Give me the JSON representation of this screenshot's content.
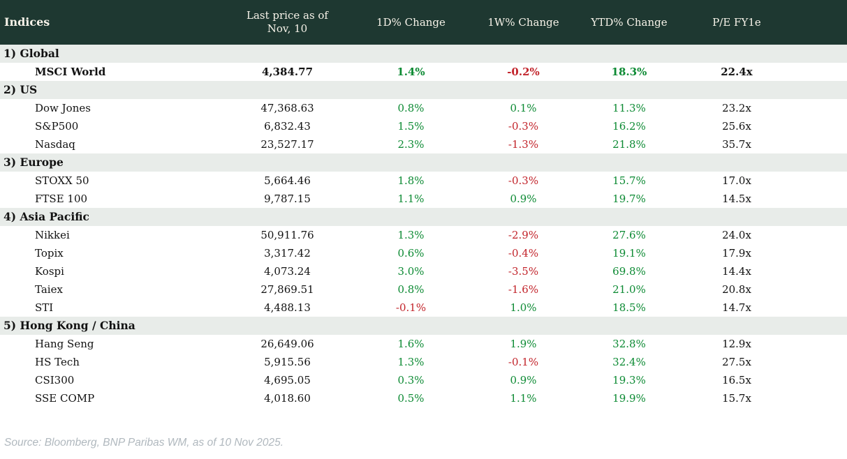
{
  "colors": {
    "header_bg": "#1e3831",
    "header_text": "#f7f3e9",
    "section_bg": "#e8ece9",
    "positive_green": "#0c8a33",
    "negative_red": "#c2242b",
    "body_text": "#121212",
    "footer_text": "#b0b8be",
    "page_bg": "#ffffff"
  },
  "chart_data": {
    "type": "table",
    "title": "Indices",
    "columns": [
      "Indices",
      "Last price as of Nov, 10",
      "1D% Change",
      "1W% Change",
      "YTD% Change",
      "P/E FY1e"
    ],
    "sections": [
      {
        "label": "1) Global",
        "rows": [
          {
            "name": "MSCI World",
            "bold": true,
            "last_price": "4,384.77",
            "chg_1d_pct": 1.4,
            "chg_1w_pct": -0.2,
            "chg_ytd_pct": 18.3,
            "pe_fy1e": 22.4
          }
        ]
      },
      {
        "label": "2) US",
        "rows": [
          {
            "name": "Dow Jones",
            "last_price": "47,368.63",
            "chg_1d_pct": 0.8,
            "chg_1w_pct": 0.1,
            "chg_ytd_pct": 11.3,
            "pe_fy1e": 23.2
          },
          {
            "name": "S&P500",
            "last_price": "6,832.43",
            "chg_1d_pct": 1.5,
            "chg_1w_pct": -0.3,
            "chg_ytd_pct": 16.2,
            "pe_fy1e": 25.6
          },
          {
            "name": "Nasdaq",
            "last_price": "23,527.17",
            "chg_1d_pct": 2.3,
            "chg_1w_pct": -1.3,
            "chg_ytd_pct": 21.8,
            "pe_fy1e": 35.7
          }
        ]
      },
      {
        "label": "3) Europe",
        "rows": [
          {
            "name": "STOXX 50",
            "last_price": "5,664.46",
            "chg_1d_pct": 1.8,
            "chg_1w_pct": -0.3,
            "chg_ytd_pct": 15.7,
            "pe_fy1e": 17.0
          },
          {
            "name": "FTSE 100",
            "last_price": "9,787.15",
            "chg_1d_pct": 1.1,
            "chg_1w_pct": 0.9,
            "chg_ytd_pct": 19.7,
            "pe_fy1e": 14.5
          }
        ]
      },
      {
        "label": "4) Asia Pacific",
        "rows": [
          {
            "name": "Nikkei",
            "last_price": "50,911.76",
            "chg_1d_pct": 1.3,
            "chg_1w_pct": -2.9,
            "chg_ytd_pct": 27.6,
            "pe_fy1e": 24.0
          },
          {
            "name": "Topix",
            "last_price": "3,317.42",
            "chg_1d_pct": 0.6,
            "chg_1w_pct": -0.4,
            "chg_ytd_pct": 19.1,
            "pe_fy1e": 17.9
          },
          {
            "name": "Kospi",
            "last_price": "4,073.24",
            "chg_1d_pct": 3.0,
            "chg_1w_pct": -3.5,
            "chg_ytd_pct": 69.8,
            "pe_fy1e": 14.4
          },
          {
            "name": "Taiex",
            "last_price": "27,869.51",
            "chg_1d_pct": 0.8,
            "chg_1w_pct": -1.6,
            "chg_ytd_pct": 21.0,
            "pe_fy1e": 20.8
          },
          {
            "name": "STI",
            "last_price": "4,488.13",
            "chg_1d_pct": -0.1,
            "chg_1w_pct": 1.0,
            "chg_ytd_pct": 18.5,
            "pe_fy1e": 14.7
          }
        ]
      },
      {
        "label": "5) Hong Kong / China",
        "rows": [
          {
            "name": "Hang Seng",
            "last_price": "26,649.06",
            "chg_1d_pct": 1.6,
            "chg_1w_pct": 1.9,
            "chg_ytd_pct": 32.8,
            "pe_fy1e": 12.9
          },
          {
            "name": "HS Tech",
            "last_price": "5,915.56",
            "chg_1d_pct": 1.3,
            "chg_1w_pct": -0.1,
            "chg_ytd_pct": 32.4,
            "pe_fy1e": 27.5
          },
          {
            "name": "CSI300",
            "last_price": "4,695.05",
            "chg_1d_pct": 0.3,
            "chg_1w_pct": 0.9,
            "chg_ytd_pct": 19.3,
            "pe_fy1e": 16.5
          },
          {
            "name": "SSE COMP",
            "last_price": "4,018.60",
            "chg_1d_pct": 0.5,
            "chg_1w_pct": 1.1,
            "chg_ytd_pct": 19.9,
            "pe_fy1e": 15.7
          }
        ]
      }
    ]
  },
  "footer": {
    "source": "Source: Bloomberg, BNP Paribas WM, as of 10 Nov 2025."
  }
}
